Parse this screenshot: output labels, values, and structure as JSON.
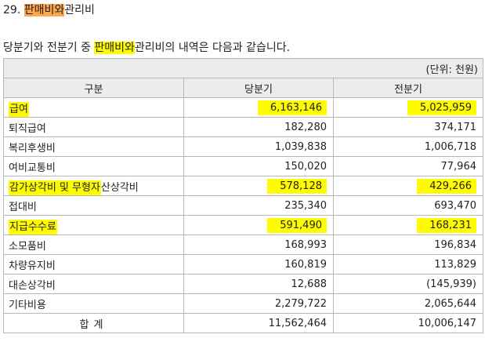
{
  "section": {
    "number": "29.",
    "title_highlight": "판매비와",
    "title_rest": "관리비"
  },
  "intro": {
    "before": "당분기와 전분기 중 ",
    "highlight": "판매비와",
    "after": "관리비의 내역은 다음과 같습니다."
  },
  "table": {
    "unit": "(단위: 천원)",
    "headers": [
      "구분",
      "당분기",
      "전분기"
    ],
    "rows": [
      {
        "label": "급여",
        "current": "6,163,146",
        "previous": "5,025,959"
      },
      {
        "label": "퇴직급여",
        "current": "182,280",
        "previous": "374,171"
      },
      {
        "label": "복리후생비",
        "current": "1,039,838",
        "previous": "1,006,718"
      },
      {
        "label": "여비교통비",
        "current": "150,020",
        "previous": "77,964"
      },
      {
        "label": "감가상각비 및 무형자산상각비",
        "label_hl": "감가상각비 및 무형자",
        "label_rest": "산상각비",
        "current": "578,128",
        "previous": "429,266"
      },
      {
        "label": "접대비",
        "current": "235,340",
        "previous": "693,470"
      },
      {
        "label": "지급수수료",
        "current": "591,490",
        "previous": "168,231"
      },
      {
        "label": "소모품비",
        "current": "168,993",
        "previous": "196,834"
      },
      {
        "label": "차량유지비",
        "current": "160,819",
        "previous": "113,829"
      },
      {
        "label": "대손상각비",
        "current": "12,688",
        "previous": "(145,939)"
      },
      {
        "label": "기타비용",
        "current": "2,279,722",
        "previous": "2,065,644"
      }
    ],
    "total": {
      "label": "합계",
      "current": "11,562,464",
      "previous": "10,006,147"
    }
  },
  "colors": {
    "highlight_orange": "#ffa54a",
    "highlight_yellow": "#fffb00",
    "header_bg": "#ececec",
    "border": "#b7b7b7"
  }
}
